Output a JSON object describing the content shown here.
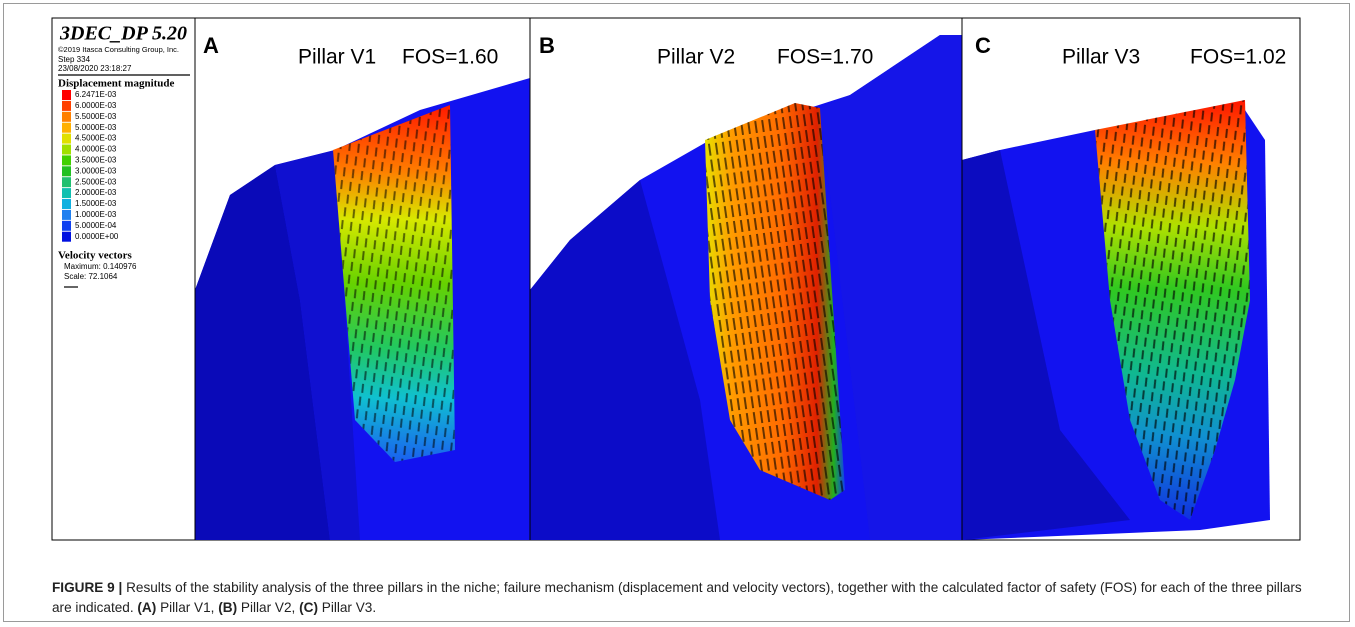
{
  "legend": {
    "title": "3DEC_DP 5.20",
    "copyright": "©2019 Itasca Consulting Group, Inc.",
    "step": "Step 334",
    "date": "23/08/2020 23:18:27",
    "heading": "Displacement magnitude",
    "entries": [
      {
        "label": "6.2471E-03",
        "color": "#ff0000"
      },
      {
        "label": "6.0000E-03",
        "color": "#ff4000"
      },
      {
        "label": "5.5000E-03",
        "color": "#ff8000"
      },
      {
        "label": "5.0000E-03",
        "color": "#ffb000"
      },
      {
        "label": "4.5000E-03",
        "color": "#e0e000"
      },
      {
        "label": "4.0000E-03",
        "color": "#a0e000"
      },
      {
        "label": "3.5000E-03",
        "color": "#40d000"
      },
      {
        "label": "3.0000E-03",
        "color": "#20c020"
      },
      {
        "label": "2.5000E-03",
        "color": "#20c070"
      },
      {
        "label": "2.0000E-03",
        "color": "#10c0b0"
      },
      {
        "label": "1.5000E-03",
        "color": "#10b0e0"
      },
      {
        "label": "1.0000E-03",
        "color": "#2080f0"
      },
      {
        "label": "5.0000E-04",
        "color": "#1040f0"
      },
      {
        "label": "0.0000E+00",
        "color": "#0010e0"
      }
    ],
    "velocity_heading": "Velocity vectors",
    "maximum": "Maximum: 0.140976",
    "scale": "Scale: 72.1064"
  },
  "panels": [
    {
      "letter": "A",
      "name": "Pillar V1",
      "fos": "FOS=1.60"
    },
    {
      "letter": "B",
      "name": "Pillar V2",
      "fos": "FOS=1.70"
    },
    {
      "letter": "C",
      "name": "Pillar V3",
      "fos": "FOS=1.02"
    }
  ],
  "caption": {
    "label": "FIGURE 9 |",
    "text": "Results of the stability analysis of the three pillars in the niche; failure mechanism (displacement and velocity vectors), together with the calculated factor of safety (FOS) for each of the three pillars are indicated.",
    "refs": [
      {
        "letter": "(A)",
        "text": "Pillar V1,"
      },
      {
        "letter": "(B)",
        "text": "Pillar V2,"
      },
      {
        "letter": "(C)",
        "text": "Pillar V3."
      }
    ]
  }
}
